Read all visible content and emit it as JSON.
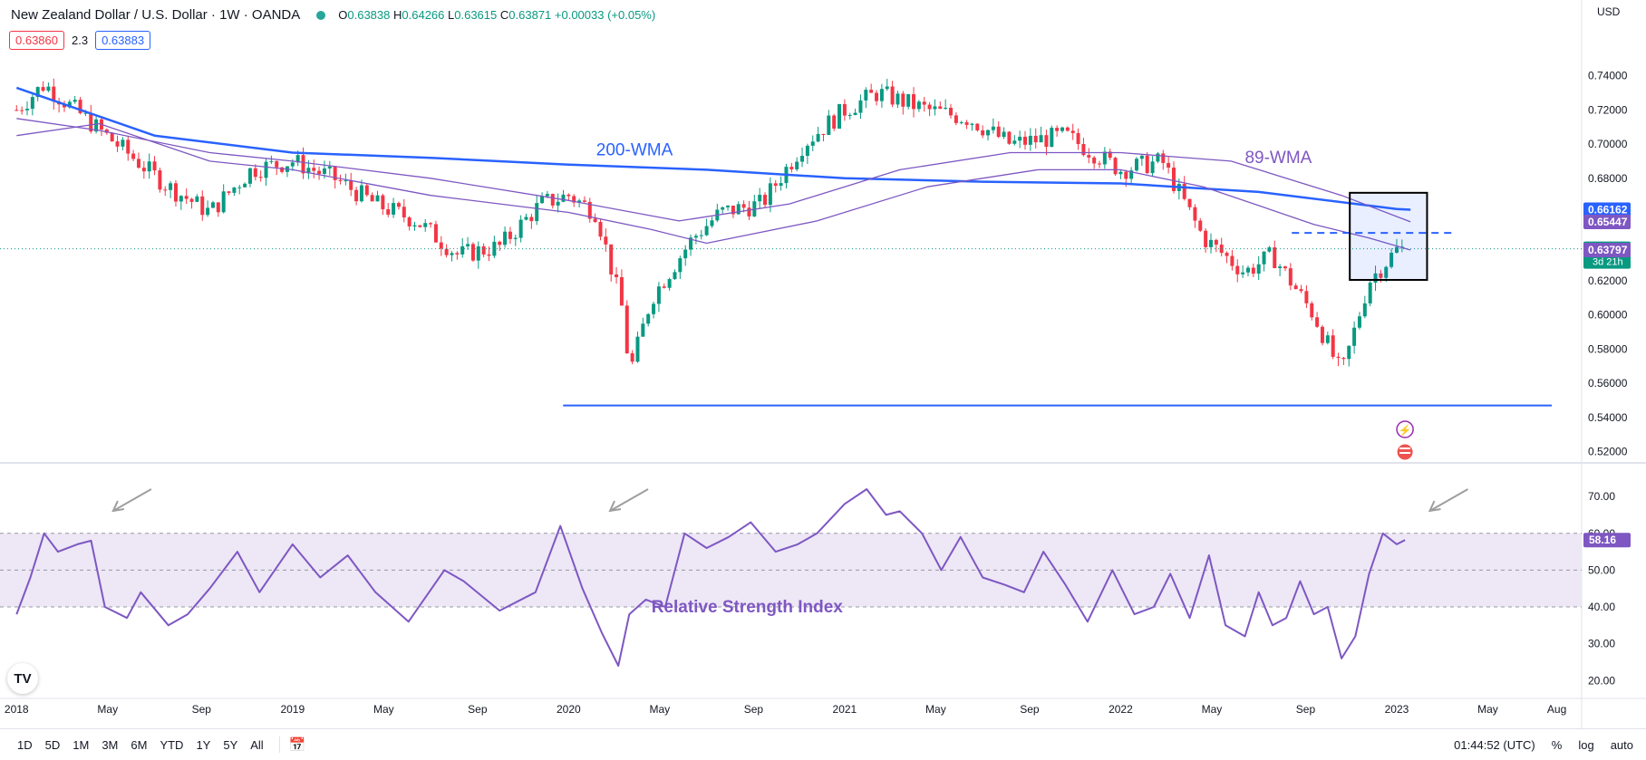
{
  "header": {
    "title": "New Zealand Dollar / U.S. Dollar · 1W · OANDA",
    "open_label": "O",
    "open": "0.63838",
    "high_label": "H",
    "high": "0.64266",
    "low_label": "L",
    "low": "0.63615",
    "close_label": "C",
    "close": "0.63871",
    "change": "+0.00033 (+0.05%)"
  },
  "quote": {
    "bid": "0.63860",
    "spread": "2.3",
    "ask": "0.63883"
  },
  "currency": "USD",
  "colors": {
    "up": "#089981",
    "down": "#f23645",
    "wma200": "#2962ff",
    "wma89": "#7e57c2",
    "rsi_line": "#7e57c2",
    "rsi_band": "#ede7f6",
    "support": "#2962ff"
  },
  "chart_data": [
    {
      "type": "line",
      "title": "New Zealand Dollar / U.S. Dollar · 1W · OANDA",
      "price_axis": [
        "0.74000",
        "0.72000",
        "0.70000",
        "0.68000",
        "0.66000",
        "0.64000",
        "0.62000",
        "0.60000",
        "0.58000",
        "0.56000",
        "0.54000",
        "0.52000"
      ],
      "ylim": [
        0.5155,
        0.7552
      ],
      "time_axis": [
        "2018",
        "May",
        "Sep",
        "2019",
        "May",
        "Sep",
        "2020",
        "May",
        "Sep",
        "2021",
        "May",
        "Sep",
        "2022",
        "May",
        "Sep",
        "2023",
        "May",
        "Aug"
      ],
      "price_path": {
        "t": [
          2018.0,
          2018.1,
          2018.25,
          2018.4,
          2018.55,
          2018.7,
          2018.85,
          2019.0,
          2019.15,
          2019.3,
          2019.45,
          2019.6,
          2019.75,
          2019.9,
          2020.0,
          2020.1,
          2020.2,
          2020.22,
          2020.3,
          2020.45,
          2020.55,
          2020.7,
          2020.85,
          2021.0,
          2021.12,
          2021.3,
          2021.45,
          2021.6,
          2021.8,
          2022.0,
          2022.15,
          2022.3,
          2022.45,
          2022.55,
          2022.7,
          2022.8,
          2022.9,
          2023.0,
          2023.03
        ],
        "close": [
          0.72,
          0.735,
          0.715,
          0.695,
          0.675,
          0.66,
          0.685,
          0.69,
          0.68,
          0.665,
          0.655,
          0.635,
          0.64,
          0.665,
          0.67,
          0.66,
          0.6,
          0.565,
          0.61,
          0.645,
          0.66,
          0.665,
          0.7,
          0.72,
          0.73,
          0.72,
          0.715,
          0.7,
          0.705,
          0.685,
          0.69,
          0.645,
          0.625,
          0.635,
          0.6,
          0.565,
          0.62,
          0.638,
          0.6387
        ]
      },
      "series": [
        {
          "name": "200-WMA",
          "t": [
            2018.0,
            2018.5,
            2019.0,
            2019.5,
            2020.0,
            2020.5,
            2021.0,
            2021.5,
            2022.0,
            2022.5,
            2023.0,
            2023.05
          ],
          "values": [
            0.733,
            0.705,
            0.695,
            0.692,
            0.688,
            0.685,
            0.68,
            0.678,
            0.677,
            0.672,
            0.662,
            0.6616
          ]
        },
        {
          "name": "89-WMA",
          "t": [
            2018.0,
            2018.3,
            2018.7,
            2019.0,
            2019.5,
            2020.0,
            2020.4,
            2020.8,
            2021.2,
            2021.6,
            2022.0,
            2022.4,
            2022.8,
            2023.05
          ],
          "values": [
            0.715,
            0.708,
            0.695,
            0.69,
            0.68,
            0.667,
            0.655,
            0.665,
            0.685,
            0.695,
            0.695,
            0.69,
            0.67,
            0.6545
          ]
        },
        {
          "t": [
            2018.0,
            2018.3,
            2018.7,
            2019.0,
            2019.5,
            2020.0,
            2020.3,
            2020.5,
            2020.9,
            2021.3,
            2021.7,
            2022.0,
            2022.3,
            2022.7,
            2022.9,
            2023.05
          ],
          "values": [
            0.705,
            0.712,
            0.69,
            0.685,
            0.67,
            0.66,
            0.65,
            0.642,
            0.655,
            0.675,
            0.685,
            0.685,
            0.675,
            0.653,
            0.645,
            0.638
          ]
        }
      ],
      "support_level": 0.547,
      "resistance_level": 0.648,
      "price_labels": [
        {
          "text": "0.66162",
          "value": 0.66162,
          "color": "#2962ff"
        },
        {
          "text": "0.65447",
          "value": 0.65447,
          "color": "#7e57c2"
        },
        {
          "text": "0.63871",
          "value": 0.63871,
          "color": "#089981",
          "sub": "3d 21h"
        },
        {
          "text": "0.63797",
          "value": 0.63797,
          "color": "#7e57c2"
        }
      ],
      "annotations": [
        {
          "text": "200-WMA",
          "t": 2020.1,
          "value": 0.6935,
          "color": "#2962ff"
        },
        {
          "text": "89-WMA",
          "t": 2022.45,
          "value": 0.689,
          "color": "#7e57c2"
        }
      ],
      "highlight": {
        "t0": 2022.83,
        "t1": 2023.11,
        "top": 0.6715,
        "bottom": 0.6205
      }
    },
    {
      "type": "line",
      "title": "Relative Strength Index",
      "ylim": [
        17.6,
        75.2
      ],
      "levels": [
        70,
        50,
        30
      ],
      "band": [
        40,
        60
      ],
      "rsi_axis": [
        "70.00",
        "60.00",
        "50.00",
        "40.00",
        "30.00",
        "20.00"
      ],
      "last_value": "58.16",
      "series": [
        {
          "name": "Relative Strength Index",
          "t": [
            2018.0,
            2018.05,
            2018.1,
            2018.15,
            2018.22,
            2018.27,
            2018.32,
            2018.4,
            2018.45,
            2018.55,
            2018.62,
            2018.7,
            2018.8,
            2018.88,
            2019.0,
            2019.1,
            2019.2,
            2019.3,
            2019.42,
            2019.55,
            2019.62,
            2019.75,
            2019.88,
            2019.97,
            2020.05,
            2020.12,
            2020.18,
            2020.22,
            2020.28,
            2020.35,
            2020.42,
            2020.5,
            2020.58,
            2020.66,
            2020.75,
            2020.83,
            2020.9,
            2021.0,
            2021.08,
            2021.15,
            2021.2,
            2021.28,
            2021.35,
            2021.42,
            2021.5,
            2021.58,
            2021.65,
            2021.72,
            2021.8,
            2021.88,
            2021.97,
            2022.05,
            2022.12,
            2022.18,
            2022.25,
            2022.32,
            2022.38,
            2022.45,
            2022.5,
            2022.55,
            2022.6,
            2022.65,
            2022.7,
            2022.75,
            2022.8,
            2022.85,
            2022.9,
            2022.95,
            2023.0,
            2023.03
          ],
          "values": [
            38,
            48,
            60,
            55,
            57,
            58,
            40,
            37,
            44,
            35,
            38,
            45,
            55,
            44,
            57,
            48,
            54,
            44,
            36,
            50,
            47,
            39,
            44,
            62,
            45,
            33,
            24,
            38,
            42,
            40,
            60,
            56,
            59,
            63,
            55,
            57,
            60,
            68,
            72,
            65,
            66,
            60,
            50,
            59,
            48,
            46,
            44,
            55,
            46,
            36,
            50,
            38,
            40,
            49,
            37,
            54,
            35,
            32,
            44,
            35,
            37,
            47,
            38,
            40,
            26,
            32,
            49,
            60,
            57,
            58.16
          ]
        }
      ],
      "annotation": {
        "text": "Relative Strength Index",
        "t": 2020.3,
        "value": 38.5
      }
    }
  ],
  "arrows_rsi": [
    {
      "t": 2018.35
    },
    {
      "t": 2020.15
    },
    {
      "t": 2023.12
    }
  ],
  "event_icons": [
    "lightning-icon",
    "us-flag-icon"
  ],
  "toolbar": {
    "ranges": [
      "1D",
      "5D",
      "1M",
      "3M",
      "6M",
      "YTD",
      "1Y",
      "5Y",
      "All"
    ],
    "time": "01:44:52 (UTC)",
    "percent": "%",
    "log": "log",
    "auto": "auto"
  }
}
